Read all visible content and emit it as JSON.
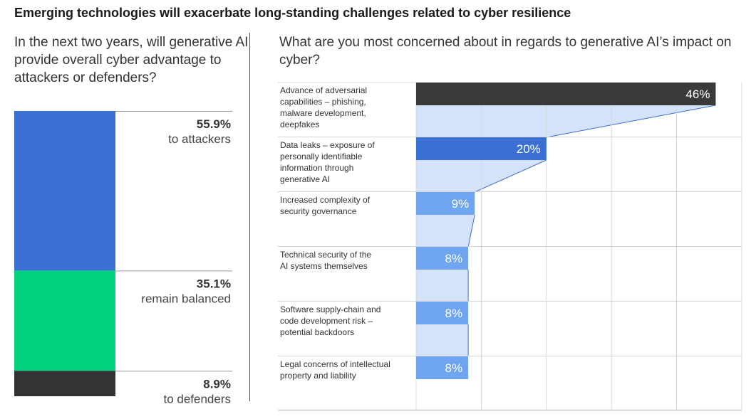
{
  "title": "Emerging technologies will exacerbate long-standing challenges related to cyber resilience",
  "left_question": "In the next two years, will generative AI provide overall cyber advantage to attackers or defenders?",
  "right_question": "What are you most concerned about in regards to generative AI’s impact on cyber?",
  "chart_data": [
    {
      "type": "bar",
      "stacked": true,
      "question": "In the next two years, will generative AI provide overall cyber advantage to attackers or defenders?",
      "segments": [
        {
          "value": 55.9,
          "value_label": "55.9%",
          "label": "to attackers",
          "color": "#3b6fd4"
        },
        {
          "value": 35.1,
          "value_label": "35.1%",
          "label": "remain balanced",
          "color": "#00d17c"
        },
        {
          "value": 8.9,
          "value_label": "8.9%",
          "label": "to defenders",
          "color": "#333333"
        }
      ]
    },
    {
      "type": "bar",
      "orientation": "horizontal",
      "question": "What are you most concerned about in regards to generative AI’s impact on cyber?",
      "xlim": [
        0,
        50
      ],
      "grid": true,
      "categories": [
        [
          "Advance of adversarial",
          "capabilities – phishing,",
          "malware development,",
          "deepfakes"
        ],
        [
          "Data leaks – exposure of",
          "personally identifiable",
          "information through",
          "generative AI"
        ],
        [
          "Increased complexity of",
          "security governance"
        ],
        [
          "Technical security of the",
          "AI systems themselves"
        ],
        [
          "Software supply-chain and",
          "code development risk –",
          "potential backdoors"
        ],
        [
          "Legal concerns of intellectual",
          "property and liability"
        ]
      ],
      "values": [
        46,
        20,
        9,
        8,
        8,
        8
      ],
      "value_labels": [
        "46%",
        "20%",
        "9%",
        "8%",
        "8%",
        "8%"
      ],
      "colors": [
        "#3a3a3a",
        "#3b6fd4",
        "#6fa5f0",
        "#6fa5f0",
        "#6fa5f0",
        "#6fa5f0"
      ],
      "funnel_color": "#d4e2fa"
    }
  ]
}
